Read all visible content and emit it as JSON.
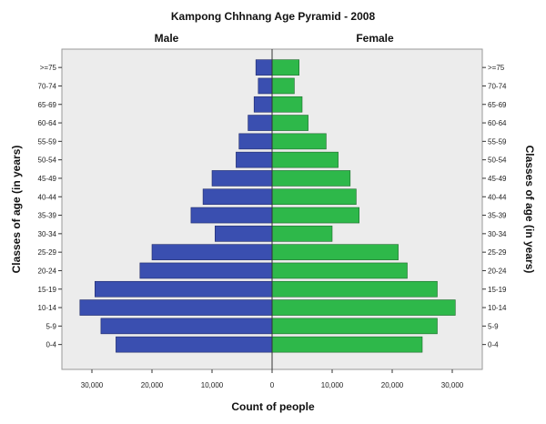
{
  "chart_data": {
    "type": "bar",
    "orientation": "horizontal-population-pyramid",
    "title": "Kampong Chhnang Age Pyramid - 2008",
    "left_panel_label": "Male",
    "right_panel_label": "Female",
    "xlabel": "Count of people",
    "ylabel_left": "Classes of age (in years)",
    "ylabel_right": "Classes of age (in years)",
    "categories": [
      "0-4",
      "5-9",
      "10-14",
      "15-19",
      "20-24",
      "25-29",
      "30-34",
      "35-39",
      "40-44",
      "45-49",
      "50-54",
      "55-59",
      "60-64",
      "65-69",
      "70-74",
      ">=75"
    ],
    "series": [
      {
        "name": "Male",
        "values": [
          26000,
          28500,
          32000,
          29500,
          22000,
          20000,
          9500,
          13500,
          11500,
          10000,
          6000,
          5500,
          4000,
          3000,
          2300,
          2700
        ]
      },
      {
        "name": "Female",
        "values": [
          25000,
          27500,
          30500,
          27500,
          22500,
          21000,
          10000,
          14500,
          14000,
          13000,
          11000,
          9000,
          6000,
          5000,
          3700,
          4500
        ]
      }
    ],
    "xlim": [
      -35000,
      35000
    ],
    "x_ticks": [
      "30,000",
      "20,000",
      "10,000",
      "0",
      "10,000",
      "20,000",
      "30,000"
    ],
    "x_tick_values": [
      -30000,
      -20000,
      -10000,
      0,
      10000,
      20000,
      30000
    ],
    "grid": false,
    "colors": {
      "male": "#3a4fb0",
      "female": "#2eb84a",
      "plot_background": "#ececec",
      "axis": "#333333"
    }
  }
}
